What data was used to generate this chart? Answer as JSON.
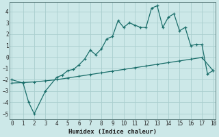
{
  "xlabel": "Humidex (Indice chaleur)",
  "bg_color": "#cce8e8",
  "grid_color": "#aacece",
  "line_color": "#1a6e6a",
  "line1_x": [
    0,
    1,
    1.5,
    2,
    3,
    4,
    4.5,
    5,
    5.5,
    6,
    6.5,
    7,
    7.5,
    8,
    8.5,
    9,
    9.5,
    10,
    10.5,
    11,
    11.5,
    12,
    12.5,
    13,
    13.5,
    14,
    14.5,
    15,
    15.5,
    16,
    16.5,
    17,
    17.5,
    18
  ],
  "line1_y": [
    -2.0,
    -2.3,
    -4.0,
    -5.0,
    -3.0,
    -1.8,
    -1.6,
    -1.2,
    -1.1,
    -0.7,
    -0.2,
    0.6,
    0.2,
    0.7,
    1.6,
    1.8,
    3.2,
    2.6,
    3.0,
    2.8,
    2.6,
    2.6,
    4.3,
    4.5,
    2.6,
    3.5,
    3.8,
    2.3,
    2.6,
    1.0,
    1.1,
    1.1,
    -1.5,
    -1.2
  ],
  "line2_x": [
    0,
    1,
    2,
    3,
    4,
    5,
    6,
    7,
    8,
    9,
    10,
    11,
    12,
    13,
    14,
    15,
    16,
    17,
    18
  ],
  "line2_y": [
    -2.3,
    -2.25,
    -2.2,
    -2.1,
    -2.0,
    -1.85,
    -1.7,
    -1.55,
    -1.4,
    -1.25,
    -1.1,
    -0.95,
    -0.8,
    -0.65,
    -0.5,
    -0.35,
    -0.2,
    -0.05,
    -1.2
  ],
  "xlim": [
    -0.2,
    18.2
  ],
  "ylim": [
    -5.5,
    4.8
  ],
  "yticks": [
    -5,
    -4,
    -3,
    -2,
    -1,
    0,
    1,
    2,
    3,
    4
  ],
  "xticks": [
    0,
    1,
    2,
    3,
    4,
    5,
    6,
    7,
    8,
    9,
    10,
    11,
    12,
    13,
    14,
    15,
    16,
    17,
    18
  ]
}
